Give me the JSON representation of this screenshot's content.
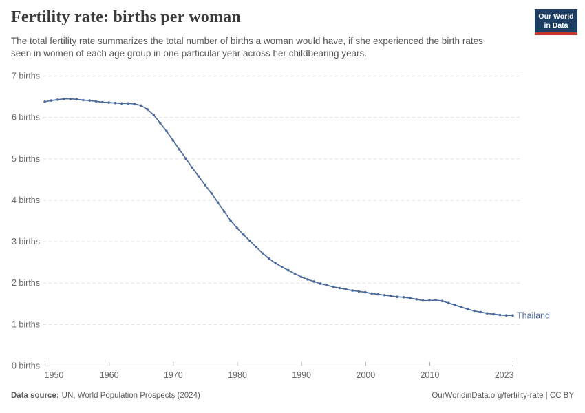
{
  "header": {
    "title": "Fertility rate: births per woman",
    "subtitle": "The total fertility rate summarizes the total number of births a woman would have, if she experienced the birth rates seen in women of each age group in one particular year across her childbearing years.",
    "logo": {
      "line1": "Our World",
      "line2": "in Data"
    }
  },
  "footer": {
    "datasource_label": "Data source:",
    "datasource_value": "UN, World Population Prospects (2024)",
    "link": "OurWorldinData.org/fertility-rate | CC BY"
  },
  "colors": {
    "series_blue": "#4c6a9c",
    "logo_navy": "#1d3d63",
    "logo_red": "#c0392b",
    "grid": "#dcdcdc",
    "axis": "#a3a3a3",
    "tick_text": "#666666",
    "title_text": "#3b3b3b",
    "subtitle_text": "#565656"
  },
  "chart_data": {
    "type": "line",
    "title": "Fertility rate: births per woman",
    "xlabel": "",
    "ylabel": "",
    "xlim": [
      1950,
      2023
    ],
    "ylim": [
      0,
      7
    ],
    "grid": "horizontal-dashed",
    "legend": "line-end-label",
    "y_ticks": [
      {
        "value": 0,
        "label": "0 births"
      },
      {
        "value": 1,
        "label": "1 births"
      },
      {
        "value": 2,
        "label": "2 births"
      },
      {
        "value": 3,
        "label": "3 births"
      },
      {
        "value": 4,
        "label": "4 births"
      },
      {
        "value": 5,
        "label": "5 births"
      },
      {
        "value": 6,
        "label": "6 births"
      },
      {
        "value": 7,
        "label": "7 births"
      }
    ],
    "x_ticks": [
      {
        "year": 1950,
        "label": "1950",
        "anchor": "start",
        "cap": true
      },
      {
        "year": 1960,
        "label": "1960",
        "anchor": "middle",
        "cap": false
      },
      {
        "year": 1970,
        "label": "1970",
        "anchor": "middle",
        "cap": false
      },
      {
        "year": 1980,
        "label": "1980",
        "anchor": "middle",
        "cap": false
      },
      {
        "year": 1990,
        "label": "1990",
        "anchor": "middle",
        "cap": false
      },
      {
        "year": 2000,
        "label": "2000",
        "anchor": "middle",
        "cap": false
      },
      {
        "year": 2010,
        "label": "2010",
        "anchor": "middle",
        "cap": false
      },
      {
        "year": 2023,
        "label": "2023",
        "anchor": "end",
        "cap": true
      }
    ],
    "series": [
      {
        "name": "Thailand",
        "color": "#4c6a9c",
        "years": [
          1950,
          1951,
          1952,
          1953,
          1954,
          1955,
          1956,
          1957,
          1958,
          1959,
          1960,
          1961,
          1962,
          1963,
          1964,
          1965,
          1966,
          1967,
          1968,
          1969,
          1970,
          1971,
          1972,
          1973,
          1974,
          1975,
          1976,
          1977,
          1978,
          1979,
          1980,
          1981,
          1982,
          1983,
          1984,
          1985,
          1986,
          1987,
          1988,
          1989,
          1990,
          1991,
          1992,
          1993,
          1994,
          1995,
          1996,
          1997,
          1998,
          1999,
          2000,
          2001,
          2002,
          2003,
          2004,
          2005,
          2006,
          2007,
          2008,
          2009,
          2010,
          2011,
          2012,
          2013,
          2014,
          2015,
          2016,
          2017,
          2018,
          2019,
          2020,
          2021,
          2022,
          2023
        ],
        "values": [
          6.37,
          6.4,
          6.42,
          6.44,
          6.44,
          6.43,
          6.41,
          6.4,
          6.38,
          6.36,
          6.35,
          6.34,
          6.33,
          6.33,
          6.32,
          6.28,
          6.19,
          6.05,
          5.86,
          5.66,
          5.44,
          5.22,
          5.0,
          4.78,
          4.57,
          4.36,
          4.16,
          3.94,
          3.72,
          3.5,
          3.32,
          3.16,
          3.01,
          2.86,
          2.71,
          2.58,
          2.47,
          2.38,
          2.3,
          2.22,
          2.14,
          2.08,
          2.03,
          1.98,
          1.94,
          1.9,
          1.87,
          1.84,
          1.81,
          1.79,
          1.77,
          1.74,
          1.72,
          1.7,
          1.68,
          1.66,
          1.65,
          1.63,
          1.6,
          1.57,
          1.57,
          1.58,
          1.56,
          1.51,
          1.46,
          1.41,
          1.36,
          1.32,
          1.29,
          1.26,
          1.24,
          1.22,
          1.21,
          1.21
        ]
      }
    ]
  }
}
